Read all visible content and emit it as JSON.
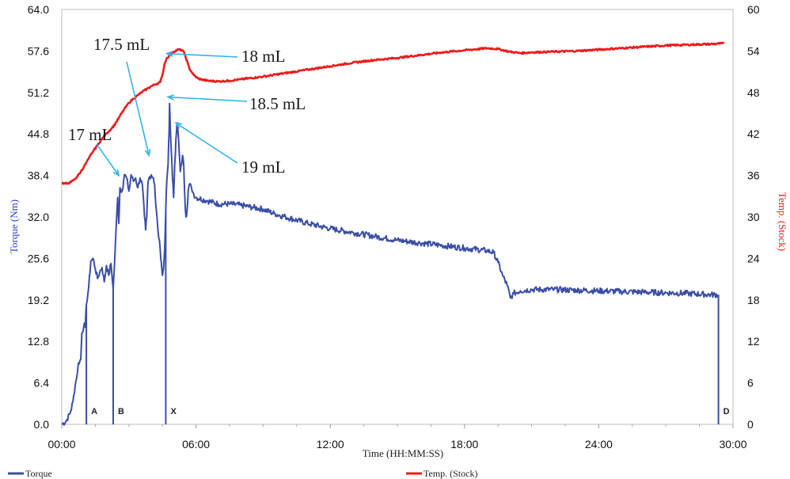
{
  "chart_data": {
    "type": "line",
    "xlabel": "Time (HH:MM:SS)",
    "ylabel_left": "Torque (Nm)",
    "ylabel_right": "Temp. (Stock)",
    "x_range_min": [
      0,
      30
    ],
    "ylim_left": [
      0,
      64
    ],
    "ylim_right": [
      0,
      60
    ],
    "x_ticks": [
      {
        "min": 0,
        "label": "00:00"
      },
      {
        "min": 6,
        "label": "06:00"
      },
      {
        "min": 12,
        "label": "12:00"
      },
      {
        "min": 18,
        "label": "18:00"
      },
      {
        "min": 24,
        "label": "24:00"
      },
      {
        "min": 30,
        "label": "30:00"
      }
    ],
    "y_left_ticks": [
      {
        "value": 0,
        "label": "0.0"
      },
      {
        "value": 6.4,
        "label": "6.4"
      },
      {
        "value": 12.8,
        "label": "12.8"
      },
      {
        "value": 19.2,
        "label": "19.2"
      },
      {
        "value": 25.6,
        "label": "25.6"
      },
      {
        "value": 32,
        "label": "32.0"
      },
      {
        "value": 38.4,
        "label": "38.4"
      },
      {
        "value": 44.8,
        "label": "44.8"
      },
      {
        "value": 51.2,
        "label": "51.2"
      },
      {
        "value": 57.6,
        "label": "57.6"
      },
      {
        "value": 64,
        "label": "64.0"
      }
    ],
    "y_right_ticks": [
      {
        "value": 0,
        "label": "0"
      },
      {
        "value": 6,
        "label": "6"
      },
      {
        "value": 12,
        "label": "12"
      },
      {
        "value": 18,
        "label": "18"
      },
      {
        "value": 24,
        "label": "24"
      },
      {
        "value": 30,
        "label": "30"
      },
      {
        "value": 36,
        "label": "36"
      },
      {
        "value": 42,
        "label": "42"
      },
      {
        "value": 48,
        "label": "48"
      },
      {
        "value": 54,
        "label": "54"
      },
      {
        "value": 60,
        "label": "60"
      }
    ],
    "series": [
      {
        "name": "Torque",
        "axis": "left",
        "color": "#3b4ea6",
        "points": [
          [
            0.0,
            0
          ],
          [
            0.2,
            0.5
          ],
          [
            0.4,
            2
          ],
          [
            0.5,
            3.5
          ],
          [
            0.6,
            6
          ],
          [
            0.7,
            8
          ],
          [
            0.75,
            9.5
          ],
          [
            0.85,
            10
          ],
          [
            0.9,
            14
          ],
          [
            1.0,
            15.5
          ],
          [
            1.05,
            15
          ],
          [
            1.1,
            18.5
          ],
          [
            1.2,
            21
          ],
          [
            1.3,
            25.2
          ],
          [
            1.4,
            25.6
          ],
          [
            1.5,
            24
          ],
          [
            1.6,
            22.5
          ],
          [
            1.7,
            23.5
          ],
          [
            1.8,
            24.2
          ],
          [
            1.9,
            22
          ],
          [
            2.0,
            24.5
          ],
          [
            2.1,
            23
          ],
          [
            2.2,
            24.8
          ],
          [
            2.3,
            21
          ],
          [
            2.35,
            24
          ],
          [
            2.4,
            28
          ],
          [
            2.5,
            35
          ],
          [
            2.55,
            31
          ],
          [
            2.6,
            36.5
          ],
          [
            2.7,
            36
          ],
          [
            2.8,
            38.5
          ],
          [
            2.9,
            38
          ],
          [
            3.0,
            36
          ],
          [
            3.05,
            37
          ],
          [
            3.1,
            38.5
          ],
          [
            3.2,
            37.5
          ],
          [
            3.3,
            38
          ],
          [
            3.4,
            36.5
          ],
          [
            3.5,
            38
          ],
          [
            3.6,
            37
          ],
          [
            3.7,
            32
          ],
          [
            3.75,
            30
          ],
          [
            3.8,
            32
          ],
          [
            3.85,
            37
          ],
          [
            3.9,
            38
          ],
          [
            4.0,
            38.5
          ],
          [
            4.1,
            38
          ],
          [
            4.15,
            37
          ],
          [
            4.2,
            34
          ],
          [
            4.3,
            30
          ],
          [
            4.4,
            27
          ],
          [
            4.45,
            25
          ],
          [
            4.5,
            23
          ],
          [
            4.55,
            24
          ],
          [
            4.6,
            27
          ],
          [
            4.65,
            33
          ],
          [
            4.7,
            38
          ],
          [
            4.75,
            40
          ],
          [
            4.8,
            45.5
          ],
          [
            4.82,
            49.5
          ],
          [
            4.85,
            46
          ],
          [
            4.9,
            42
          ],
          [
            4.95,
            38
          ],
          [
            5.0,
            35
          ],
          [
            5.05,
            40
          ],
          [
            5.1,
            44
          ],
          [
            5.15,
            46.5
          ],
          [
            5.2,
            45
          ],
          [
            5.25,
            42
          ],
          [
            5.3,
            39
          ],
          [
            5.35,
            40
          ],
          [
            5.4,
            41.5
          ],
          [
            5.45,
            40
          ],
          [
            5.5,
            35
          ],
          [
            5.55,
            32
          ],
          [
            5.6,
            33
          ],
          [
            5.65,
            36
          ],
          [
            5.7,
            37
          ],
          [
            5.8,
            36.5
          ],
          [
            5.9,
            35.5
          ],
          [
            6.0,
            35
          ],
          [
            6.5,
            34.5
          ],
          [
            7.0,
            34
          ],
          [
            7.5,
            34
          ],
          [
            8.0,
            33.8
          ],
          [
            8.5,
            33.5
          ],
          [
            9.0,
            33.2
          ],
          [
            9.5,
            32.5
          ],
          [
            10.0,
            32
          ],
          [
            11.0,
            31
          ],
          [
            12.0,
            30.2
          ],
          [
            13.0,
            29.6
          ],
          [
            14.0,
            29.0
          ],
          [
            15.0,
            28.4
          ],
          [
            16.0,
            28.0
          ],
          [
            17.0,
            27.6
          ],
          [
            18.0,
            27.2
          ],
          [
            19.0,
            26.8
          ],
          [
            19.3,
            26.5
          ],
          [
            19.5,
            25
          ],
          [
            19.7,
            23
          ],
          [
            19.9,
            21.5
          ],
          [
            20.05,
            19.5
          ],
          [
            20.2,
            20.2
          ],
          [
            20.5,
            20.6
          ],
          [
            21.0,
            20.8
          ],
          [
            22.0,
            20.8
          ],
          [
            23.0,
            20.7
          ],
          [
            24.0,
            20.6
          ],
          [
            25.0,
            20.5
          ],
          [
            26.0,
            20.4
          ],
          [
            27.0,
            20.3
          ],
          [
            28.0,
            20.2
          ],
          [
            29.0,
            20.0
          ],
          [
            29.35,
            20.0
          ]
        ]
      },
      {
        "name": "Temp. (Stock)",
        "axis": "right",
        "color": "#ec1c1c",
        "points": [
          [
            0.0,
            34.9
          ],
          [
            0.2,
            34.8
          ],
          [
            0.4,
            35
          ],
          [
            0.6,
            35.5
          ],
          [
            0.8,
            36.3
          ],
          [
            1.0,
            37.3
          ],
          [
            1.2,
            38.4
          ],
          [
            1.4,
            39.5
          ],
          [
            1.6,
            40.4
          ],
          [
            1.8,
            41.3
          ],
          [
            2.0,
            42.1
          ],
          [
            2.2,
            42.7
          ],
          [
            2.4,
            43.5
          ],
          [
            2.6,
            44.6
          ],
          [
            2.8,
            45.6
          ],
          [
            3.0,
            46.5
          ],
          [
            3.2,
            47.1
          ],
          [
            3.4,
            47.6
          ],
          [
            3.6,
            48.1
          ],
          [
            3.8,
            48.5
          ],
          [
            4.0,
            48.9
          ],
          [
            4.2,
            49.2
          ],
          [
            4.4,
            49.5
          ],
          [
            4.5,
            50.5
          ],
          [
            4.6,
            52.2
          ],
          [
            4.7,
            53.0
          ],
          [
            4.8,
            53.3
          ],
          [
            5.0,
            53.9
          ],
          [
            5.2,
            54.2
          ],
          [
            5.4,
            54.1
          ],
          [
            5.5,
            53.5
          ],
          [
            5.7,
            51.5
          ],
          [
            5.9,
            50.5
          ],
          [
            6.1,
            50.0
          ],
          [
            6.5,
            49.7
          ],
          [
            7.0,
            49.6
          ],
          [
            7.5,
            49.7
          ],
          [
            8.0,
            49.9
          ],
          [
            9.0,
            50.3
          ],
          [
            10.0,
            50.8
          ],
          [
            11.0,
            51.3
          ],
          [
            12.0,
            51.8
          ],
          [
            13.0,
            52.3
          ],
          [
            14.0,
            52.7
          ],
          [
            15.0,
            53.0
          ],
          [
            16.0,
            53.4
          ],
          [
            17.0,
            53.8
          ],
          [
            18.0,
            54.1
          ],
          [
            19.0,
            54.4
          ],
          [
            19.5,
            54.3
          ],
          [
            20.0,
            53.9
          ],
          [
            20.5,
            53.7
          ],
          [
            21.0,
            53.8
          ],
          [
            22.0,
            53.9
          ],
          [
            23.0,
            54.0
          ],
          [
            24.0,
            54.2
          ],
          [
            25.0,
            54.4
          ],
          [
            26.0,
            54.6
          ],
          [
            27.0,
            54.8
          ],
          [
            28.0,
            54.9
          ],
          [
            29.0,
            55.0
          ],
          [
            29.6,
            55.1
          ]
        ]
      }
    ],
    "markers": [
      {
        "label": "A",
        "min": 1.1
      },
      {
        "label": "B",
        "min": 2.3
      },
      {
        "label": "X",
        "min": 4.65
      },
      {
        "label": "D",
        "min": 29.35
      }
    ],
    "annotations": [
      {
        "text": "17 mL",
        "target_min": 2.55,
        "target_torque": 38.4
      },
      {
        "text": "17.5 mL",
        "target_min": 3.9,
        "target_torque": 41.5
      },
      {
        "text": "18 mL",
        "target_min": 4.7,
        "target_torque": 57.2
      },
      {
        "text": "18.5 mL",
        "target_min": 4.75,
        "target_torque": 50.5
      },
      {
        "text": "19 mL",
        "target_min": 5.1,
        "target_torque": 46.5
      }
    ],
    "legend": {
      "position": "bottom",
      "items": [
        {
          "label": "Torque",
          "color": "#3b4ea6"
        },
        {
          "label": "Temp. (Stock)",
          "color": "#ec1c1c"
        }
      ]
    },
    "grid": false
  }
}
